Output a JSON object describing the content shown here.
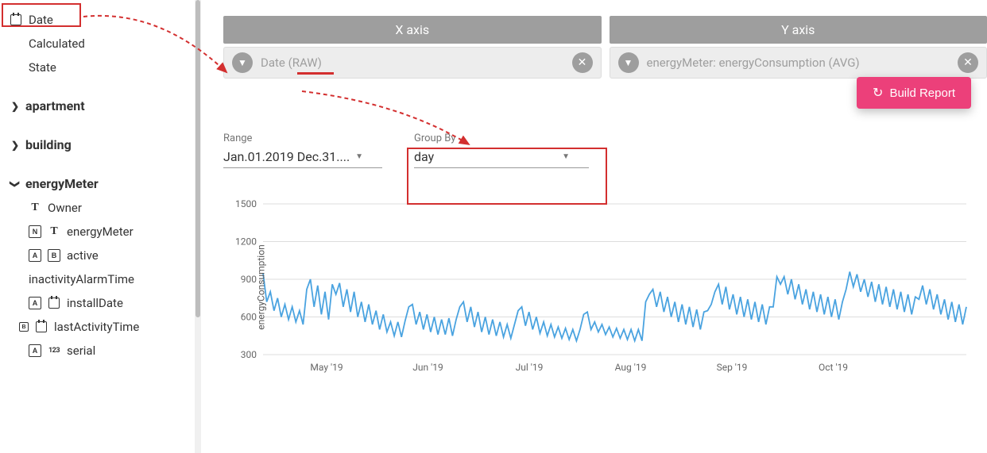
{
  "sidebar": {
    "date_label": "Date",
    "calculated_label": "Calculated",
    "state_label": "State",
    "apartment_label": "apartment",
    "building_label": "building",
    "energyMeter_label": "energyMeter",
    "owner_label": "Owner",
    "em_field_label": "energyMeter",
    "active_label": "active",
    "inactivity_label": "inactivityAlarmTime",
    "installDate_label": "installDate",
    "lastActivity_label": "lastActivityTime",
    "serial_label": "serial"
  },
  "axis": {
    "x_header": "X axis",
    "y_header": "Y axis",
    "x_value": "Date (RAW)",
    "y_value": "energyMeter: energyConsumption (AVG)"
  },
  "build_button": "Build Report",
  "controls": {
    "range_label": "Range",
    "range_value": "Jan.01.2019 Dec.31....",
    "groupby_label": "Group By",
    "groupby_value": "day"
  },
  "chart": {
    "type": "line",
    "y_axis_label": "energyConsumption",
    "ylim": [
      300,
      1500
    ],
    "yticks": [
      300,
      600,
      900,
      1200,
      1500
    ],
    "xticks": [
      "May '19",
      "Jun '19",
      "Jul '19",
      "Aug '19",
      "Sep '19",
      "Oct '19"
    ],
    "line_color": "#4aa3e0",
    "line_width": 1.8,
    "grid_color": "#dddddd",
    "tick_color": "#666666",
    "tick_fontsize": 12,
    "background_color": "#ffffff",
    "points": [
      950,
      720,
      800,
      650,
      750,
      600,
      700,
      580,
      680,
      560,
      650,
      540,
      820,
      900,
      680,
      850,
      620,
      800,
      580,
      860,
      780,
      870,
      680,
      820,
      640,
      800,
      600,
      720,
      560,
      700,
      540,
      650,
      500,
      620,
      480,
      560,
      450,
      560,
      440,
      570,
      680,
      700,
      540,
      640,
      500,
      620,
      480,
      600,
      460,
      580,
      460,
      590,
      450,
      580,
      680,
      720,
      560,
      680,
      520,
      640,
      480,
      600,
      460,
      580,
      450,
      560,
      440,
      540,
      430,
      540,
      650,
      680,
      530,
      640,
      500,
      600,
      470,
      560,
      450,
      540,
      440,
      520,
      430,
      510,
      420,
      500,
      410,
      500,
      620,
      640,
      500,
      560,
      480,
      540,
      460,
      520,
      440,
      510,
      430,
      500,
      420,
      500,
      410,
      500,
      410,
      720,
      780,
      820,
      680,
      800,
      640,
      760,
      600,
      720,
      560,
      700,
      540,
      680,
      520,
      660,
      500,
      640,
      650,
      700,
      800,
      860,
      700,
      840,
      660,
      780,
      620,
      760,
      600,
      740,
      580,
      720,
      560,
      700,
      540,
      680,
      680,
      920,
      860,
      920,
      780,
      900,
      740,
      860,
      700,
      820,
      660,
      800,
      640,
      780,
      620,
      760,
      600,
      740,
      580,
      720,
      820,
      960,
      840,
      940,
      800,
      900,
      760,
      880,
      720,
      860,
      700,
      840,
      680,
      820,
      660,
      800,
      640,
      780,
      620,
      760,
      740,
      850,
      700,
      820,
      660,
      780,
      620,
      740,
      580,
      720,
      560,
      700,
      540,
      680
    ]
  },
  "annotation": {
    "color": "#d32f2f"
  }
}
